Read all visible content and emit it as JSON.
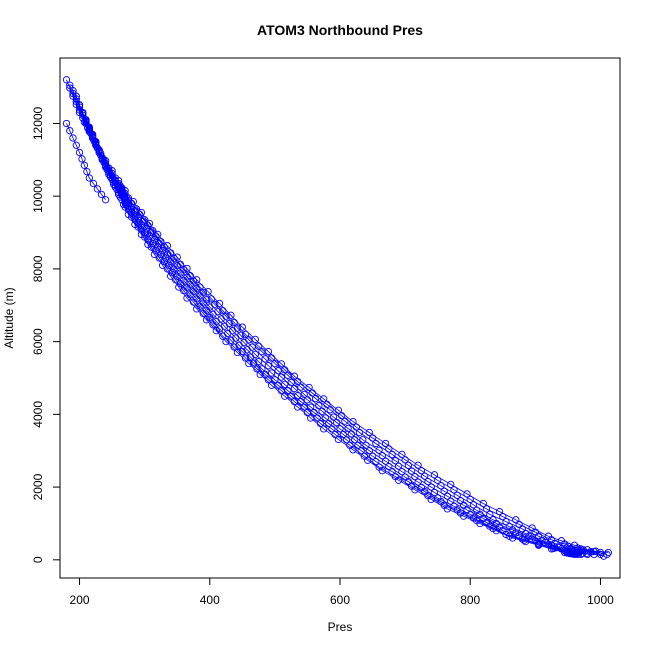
{
  "chart_data": {
    "type": "scatter",
    "title": "ATOM3 Northbound Pres",
    "xlabel": "Pres",
    "ylabel": "Altitude (m)",
    "xlim": [
      170,
      1030
    ],
    "ylim": [
      -500,
      13800
    ],
    "xticks": [
      200,
      400,
      600,
      800,
      1000
    ],
    "yticks": [
      0,
      2000,
      4000,
      6000,
      8000,
      10000,
      12000
    ],
    "grid": false,
    "legend": "none",
    "marker": "open-circle",
    "connected": true,
    "color": "#0000ff",
    "profiles": [
      {
        "x": [
          180,
          200,
          230,
          270,
          320,
          380,
          450,
          530,
          620,
          720,
          820,
          920,
          1000
        ],
        "y": [
          13200,
          12300,
          11250,
          10150,
          8950,
          7700,
          6400,
          5050,
          3800,
          2600,
          1550,
          650,
          150
        ]
      },
      {
        "x": [
          185,
          205,
          235,
          275,
          325,
          385,
          455,
          535,
          625,
          725,
          825,
          925,
          1005
        ],
        "y": [
          13050,
          12150,
          11050,
          9950,
          8750,
          7500,
          6200,
          4900,
          3650,
          2450,
          1400,
          550,
          100
        ]
      },
      {
        "x": [
          190,
          210,
          240,
          280,
          330,
          390,
          460,
          540,
          630,
          730,
          830,
          930,
          1010
        ],
        "y": [
          12900,
          12000,
          10900,
          9800,
          8600,
          7350,
          6050,
          4750,
          3500,
          2300,
          1250,
          450,
          150
        ]
      },
      {
        "x": [
          195,
          215,
          245,
          285,
          335,
          395,
          465,
          545,
          635,
          735,
          835,
          935,
          1012
        ],
        "y": [
          12750,
          11800,
          10700,
          9600,
          8400,
          7150,
          5850,
          4550,
          3300,
          2150,
          1100,
          350,
          200
        ]
      },
      {
        "x": [
          200,
          220,
          250,
          290,
          340,
          400,
          470,
          550,
          640,
          740,
          840,
          940,
          1000
        ],
        "y": [
          12500,
          11600,
          10500,
          9400,
          8200,
          6950,
          5650,
          4400,
          3150,
          2000,
          1000,
          300,
          200
        ]
      },
      {
        "x": [
          205,
          225,
          255,
          295,
          345,
          405,
          475,
          555,
          645,
          745,
          845,
          945,
          990
        ],
        "y": [
          12300,
          11400,
          10300,
          9200,
          8000,
          6750,
          5450,
          4200,
          3000,
          1850,
          900,
          250,
          150
        ]
      },
      {
        "x": [
          210,
          230,
          260,
          300,
          350,
          410,
          480,
          560,
          650,
          750,
          850,
          950,
          980
        ],
        "y": [
          12100,
          11200,
          10100,
          9000,
          7800,
          6550,
          5250,
          4050,
          2850,
          1700,
          800,
          250,
          150
        ]
      },
      {
        "x": [
          215,
          235,
          265,
          305,
          355,
          415,
          485,
          565,
          655,
          755,
          855,
          955,
          970
        ],
        "y": [
          11900,
          11000,
          9900,
          8800,
          7600,
          6350,
          5100,
          3900,
          2700,
          1600,
          700,
          200,
          150
        ]
      },
      {
        "x": [
          220,
          240,
          270,
          310,
          360,
          420,
          490,
          570,
          660,
          760,
          860,
          950,
          965
        ],
        "y": [
          11700,
          10800,
          9700,
          8600,
          7400,
          6150,
          4950,
          3750,
          2550,
          1500,
          650,
          200,
          150
        ]
      },
      {
        "x": [
          225,
          245,
          275,
          315,
          365,
          425,
          495,
          575,
          665,
          765,
          865,
          945,
          960
        ],
        "y": [
          11500,
          10600,
          9500,
          8400,
          7200,
          6000,
          4800,
          3600,
          2450,
          1400,
          600,
          200,
          150
        ]
      },
      {
        "x": [
          180,
          200,
          215,
          240
        ],
        "y": [
          12000,
          11200,
          10500,
          9900
        ]
      },
      {
        "x": [
          262,
          268,
          272
        ],
        "y": [
          10300,
          10050,
          9750
        ]
      }
    ]
  }
}
